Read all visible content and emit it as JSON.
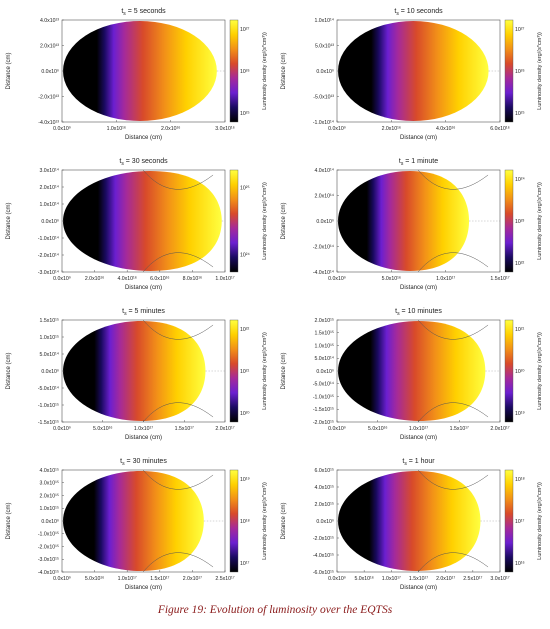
{
  "figure": {
    "caption": "Figure 19: Evolution of luminosity over the EQTSs"
  },
  "colormap": [
    "#000000",
    "#1a0a60",
    "#6b1fd0",
    "#a52a9a",
    "#d84a2a",
    "#f29018",
    "#ffd000",
    "#ffff40"
  ],
  "chart_data": [
    {
      "type": "heatmap",
      "title": "t_s = 5 seconds",
      "title_prefix": "t",
      "title_sub": "s",
      "title_suffix": " = 5 seconds",
      "xlabel": "Distance (cm)",
      "ylabel": "Distance (cm)",
      "zlabel": "Luminosity density (erg/(s*cm³))",
      "xlim": [
        0,
        3e+16
      ],
      "ylim": [
        -45000000000000.0,
        45000000000000.0
      ],
      "xticks": [
        "0.0x10⁰",
        "1.0x10¹⁶",
        "2.0x10¹⁶",
        "3.0x10¹⁶"
      ],
      "yticks": [
        "4.0x10¹³",
        "2.0x10¹³",
        "0.0x10⁰",
        "-2.0x10¹³",
        "-4.0x10¹³"
      ],
      "cbar_ticks": [
        "10²⁷",
        "10²⁶",
        "10²⁵"
      ],
      "shape": "ellipse",
      "curves": false
    },
    {
      "type": "heatmap",
      "title": "t_s = 10 seconds",
      "title_prefix": "t",
      "title_sub": "s",
      "title_suffix": " = 10 seconds",
      "xlabel": "Distance (cm)",
      "ylabel": "Distance (cm)",
      "zlabel": "Luminosity density (erg/(s*cm³))",
      "xlim": [
        0,
        6e+16
      ],
      "ylim": [
        -100000000000000.0,
        100000000000000.0
      ],
      "xticks": [
        "0.0x10⁰",
        "2.0x10¹⁶",
        "4.0x10¹⁶",
        "6.0x10¹⁶"
      ],
      "yticks": [
        "1.0x10¹⁴",
        "5.0x10¹³",
        "0.0x10⁰",
        "-5.0x10¹³",
        "-1.0x10¹⁴"
      ],
      "cbar_ticks": [
        "10²⁷",
        "10²⁶",
        "10²⁵"
      ],
      "shape": "ellipse",
      "curves": false
    },
    {
      "type": "heatmap",
      "title": "t_s = 30 seconds",
      "title_prefix": "t",
      "title_sub": "s",
      "title_suffix": " = 30 seconds",
      "xlabel": "Distance (cm)",
      "ylabel": "Distance (cm)",
      "zlabel": "Luminosity density (erg/(s*cm³))",
      "xlim": [
        0,
        1e+17
      ],
      "ylim": [
        -300000000000000.0,
        300000000000000.0
      ],
      "xticks": [
        "0.0x10⁰",
        "2.0x10¹⁶",
        "4.0x10¹⁶",
        "6.0x10¹⁶",
        "8.0x10¹⁶",
        "1.0x10¹⁷"
      ],
      "yticks": [
        "3.0x10¹⁴",
        "2.0x10¹⁴",
        "1.0x10¹⁴",
        "0.0x10⁰",
        "-1.0x10¹⁴",
        "-2.0x10¹⁴",
        "-3.0x10¹⁴"
      ],
      "cbar_ticks": [
        "10²⁵",
        "10²⁴"
      ],
      "shape": "egg",
      "curves": true
    },
    {
      "type": "heatmap",
      "title": "t_s = 1 minute",
      "title_prefix": "t",
      "title_sub": "s",
      "title_suffix": " = 1 minute",
      "xlabel": "Distance (cm)",
      "ylabel": "Distance (cm)",
      "zlabel": "Luminosity density (erg/(s*cm³))",
      "xlim": [
        0,
        1.5e+17
      ],
      "ylim": [
        -500000000000000.0,
        500000000000000.0
      ],
      "xticks": [
        "0.0x10⁰",
        "5.0x10¹⁶",
        "1.0x10¹⁷",
        "1.5x10¹⁷"
      ],
      "yticks": [
        "4.0x10¹⁴",
        "2.0x10¹⁴",
        "0.0x10⁰",
        "-2.0x10¹⁴",
        "-4.0x10¹⁴"
      ],
      "cbar_ticks": [
        "10²⁴",
        "10²³",
        "10²²"
      ],
      "shape": "egg",
      "curves": true
    },
    {
      "type": "heatmap",
      "title": "t_s = 5 minutes",
      "title_prefix": "t",
      "title_sub": "s",
      "title_suffix": " = 5 minutes",
      "xlabel": "Distance (cm)",
      "ylabel": "Distance (cm)",
      "zlabel": "Luminosity density (erg/(s*cm³))",
      "xlim": [
        0,
        2e+17
      ],
      "ylim": [
        -1500000000000000.0,
        1500000000000000.0
      ],
      "xticks": [
        "0.0x10⁰",
        "5.0x10¹⁶",
        "1.0x10¹⁷",
        "1.5x10¹⁷",
        "2.0x10¹⁷"
      ],
      "yticks": [
        "1.5x10¹⁵",
        "1.0x10¹⁵",
        "5.0x10¹⁴",
        "0.0x10⁰",
        "-5.0x10¹⁴",
        "-1.0x10¹⁵",
        "-1.5x10¹⁵"
      ],
      "cbar_ticks": [
        "10²²",
        "10²¹",
        "10²⁰"
      ],
      "shape": "egg",
      "curves": true
    },
    {
      "type": "heatmap",
      "title": "t_s = 10 minutes",
      "title_prefix": "t",
      "title_sub": "s",
      "title_suffix": " = 10 minutes",
      "xlabel": "Distance (cm)",
      "ylabel": "Distance (cm)",
      "zlabel": "Luminosity density (erg/(s*cm³))",
      "xlim": [
        0,
        2e+17
      ],
      "ylim": [
        -2000000000000000.0,
        2000000000000000.0
      ],
      "xticks": [
        "0.0x10⁰",
        "5.0x10¹⁶",
        "1.0x10¹⁷",
        "1.5x10¹⁷",
        "2.0x10¹⁷"
      ],
      "yticks": [
        "2.0x10¹⁵",
        "1.5x10¹⁵",
        "1.0x10¹⁵",
        "5.0x10¹⁴",
        "0.0x10⁰",
        "-5.0x10¹⁴",
        "-1.0x10¹⁵",
        "-1.5x10¹⁵",
        "-2.0x10¹⁵"
      ],
      "cbar_ticks": [
        "10²¹",
        "10²⁰",
        "10¹⁹"
      ],
      "shape": "egg",
      "curves": true
    },
    {
      "type": "heatmap",
      "title": "t_s = 30 minutes",
      "title_prefix": "t",
      "title_sub": "s",
      "title_suffix": " = 30 minutes",
      "xlabel": "Distance (cm)",
      "ylabel": "Distance (cm)",
      "zlabel": "Luminosity density (erg/(s*cm³))",
      "xlim": [
        0,
        2.5e+17
      ],
      "ylim": [
        -4000000000000000.0,
        4000000000000000.0
      ],
      "xticks": [
        "0.0x10⁰",
        "5.0x10¹⁶",
        "1.0x10¹⁷",
        "1.5x10¹⁷",
        "2.0x10¹⁷",
        "2.5x10¹⁷"
      ],
      "yticks": [
        "4.0x10¹⁵",
        "3.0x10¹⁵",
        "2.0x10¹⁵",
        "1.0x10¹⁵",
        "0.0x10⁰",
        "-1.0x10¹⁵",
        "-2.0x10¹⁵",
        "-3.0x10¹⁵",
        "-4.0x10¹⁵"
      ],
      "cbar_ticks": [
        "10¹⁹",
        "10¹⁸",
        "10¹⁷"
      ],
      "shape": "egg",
      "curves": true
    },
    {
      "type": "heatmap",
      "title": "t_s = 1 hour",
      "title_prefix": "t",
      "title_sub": "s",
      "title_suffix": " = 1 hour",
      "xlabel": "Distance (cm)",
      "ylabel": "Distance (cm)",
      "zlabel": "Luminosity density (erg/(s*cm³))",
      "xlim": [
        0,
        3e+17
      ],
      "ylim": [
        -7000000000000000.0,
        7000000000000000.0
      ],
      "xticks": [
        "0.0x10⁰",
        "5.0x10¹⁶",
        "1.0x10¹⁷",
        "1.5x10¹⁷",
        "2.0x10¹⁷",
        "2.5x10¹⁷",
        "3.0x10¹⁷"
      ],
      "yticks": [
        "6.0x10¹⁵",
        "4.0x10¹⁵",
        "2.0x10¹⁵",
        "0.0x10⁰",
        "-2.0x10¹⁵",
        "-4.0x10¹⁵",
        "-6.0x10¹⁵"
      ],
      "cbar_ticks": [
        "10¹⁸",
        "10¹⁷",
        "10¹⁶"
      ],
      "shape": "egg",
      "curves": true
    }
  ]
}
